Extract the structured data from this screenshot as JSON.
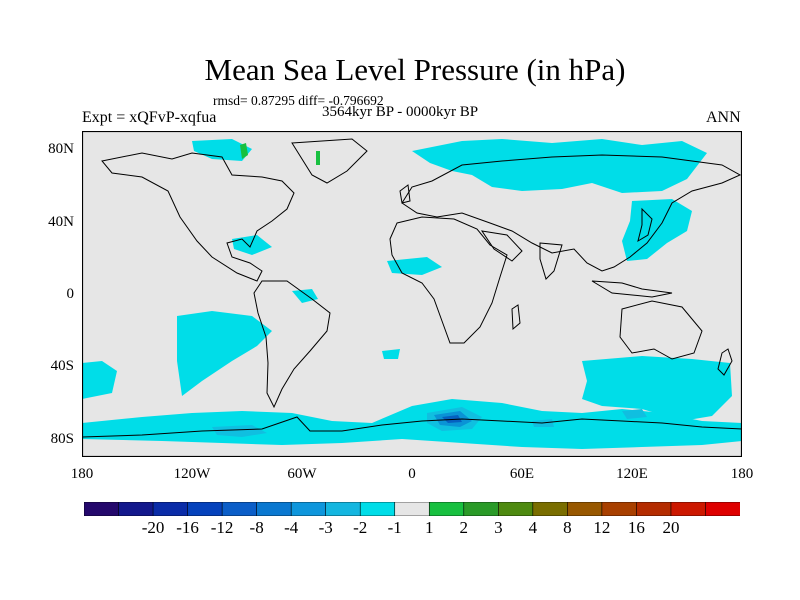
{
  "title": "Mean Sea Level Pressure (in hPa)",
  "stats_label": "rmsd= 0.87295 diff= -0.796692",
  "period_label": "3564kyr BP - 0000kyr BP",
  "experiment_label": "Expt = xQFvP-xqfua",
  "season_label": "ANN",
  "map": {
    "projection": "cylindrical-equidistant",
    "lon_range": [
      -180,
      180
    ],
    "lat_range": [
      -90,
      90
    ],
    "y_ticks": [
      {
        "label": "80N",
        "lat": 80
      },
      {
        "label": "40N",
        "lat": 40
      },
      {
        "label": "0",
        "lat": 0
      },
      {
        "label": "40S",
        "lat": -40
      },
      {
        "label": "80S",
        "lat": -80
      }
    ],
    "x_ticks": [
      {
        "label": "180",
        "lon": -180
      },
      {
        "label": "120W",
        "lon": -120
      },
      {
        "label": "60W",
        "lon": -60
      },
      {
        "label": "0",
        "lon": 0
      },
      {
        "label": "60E",
        "lon": 60
      },
      {
        "label": "120E",
        "lon": 120
      },
      {
        "label": "180",
        "lon": 180
      }
    ],
    "colors": {
      "background": "#e6e6e6",
      "diff_-1_to_-2": "#00dde8",
      "diff_-2_to_-3": "#10bfe0",
      "diff_-3_to_-4": "#0a93d6",
      "diff_-4_to_-8": "#0560c0",
      "positive_1_to_2": "#18c040"
    }
  },
  "colorbar": {
    "labels": [
      "-20",
      "-16",
      "-12",
      "-8",
      "-4",
      "-3",
      "-2",
      "-1",
      "1",
      "2",
      "3",
      "4",
      "8",
      "12",
      "16",
      "20"
    ],
    "colors": [
      "#24086c",
      "#13188c",
      "#0a2ca8",
      "#0542bc",
      "#0b5ec8",
      "#0a78d0",
      "#0e96dc",
      "#14b6e0",
      "#00dde8",
      "#e6e6e6",
      "#18c040",
      "#2a9a28",
      "#4e8a10",
      "#7a6e00",
      "#985800",
      "#a84000",
      "#b42c00",
      "#cc1800",
      "#de0000"
    ]
  }
}
